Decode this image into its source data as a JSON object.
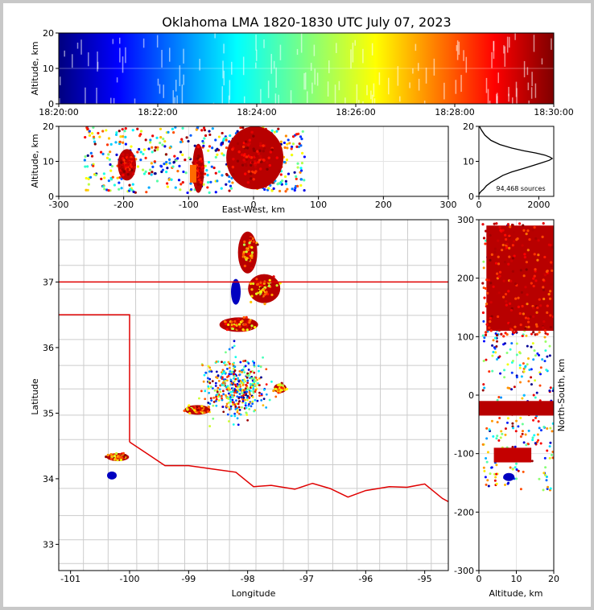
{
  "title": "Oklahoma LMA 1820-1830 UTC July 07, 2023",
  "colors": {
    "border": "#e00000",
    "county": "#c8c8c8",
    "hist": "#000000",
    "frame": "#c8c8c8"
  },
  "chart_data": [
    {
      "id": "time-altitude",
      "type": "scatter",
      "ylabel": "Altitude, km",
      "xlabel": "",
      "xlim": [
        "18:20:00",
        "18:30:00"
      ],
      "xticks": [
        "18:20:00",
        "18:22:00",
        "18:24:00",
        "18:26:00",
        "18:28:00",
        "18:30:00"
      ],
      "ylim": [
        0,
        20
      ],
      "yticks": [
        "0",
        "10",
        "20"
      ],
      "colormap": "jet (by time)"
    },
    {
      "id": "eastwest-altitude",
      "type": "scatter",
      "xlabel": "East-West, km",
      "ylabel": "Altitude, km",
      "xlim": [
        -300,
        300
      ],
      "xticks": [
        "-300",
        "-200",
        "-100",
        "0",
        "100",
        "200",
        "300"
      ],
      "ylim": [
        0,
        20
      ],
      "yticks": [
        "0",
        "10",
        "20"
      ],
      "grid": true
    },
    {
      "id": "altitude-histogram",
      "type": "line",
      "xlim": [
        0,
        2500
      ],
      "xticks": [
        "0",
        "2000"
      ],
      "ylim": [
        0,
        20
      ],
      "yticks": [
        "0",
        "10",
        "20"
      ],
      "annotation": "94,468 sources",
      "x": [
        0,
        30,
        80,
        150,
        250,
        400,
        600,
        800,
        1100,
        1500,
        1800,
        2100,
        2350,
        2450,
        2380,
        2200,
        1900,
        1500,
        1100,
        700,
        400,
        200,
        80,
        20
      ],
      "y": [
        0.5,
        1,
        1.5,
        2,
        3,
        4,
        5,
        6,
        7,
        8,
        8.8,
        9.6,
        10.3,
        10.8,
        11.2,
        11.8,
        12.4,
        13.0,
        13.8,
        14.8,
        16,
        17.5,
        19,
        20
      ]
    },
    {
      "id": "plan-view",
      "type": "scatter",
      "xlabel": "Longitude",
      "ylabel": "Latitude",
      "xlim": [
        -101.2,
        -94.6
      ],
      "xticks": [
        "-101",
        "-100",
        "-99",
        "-98",
        "-97",
        "-96",
        "-95"
      ],
      "ylim": [
        32.6,
        37.95
      ],
      "yticks": [
        "33",
        "34",
        "35",
        "36",
        "37"
      ],
      "storms": [
        {
          "lon": -97.98,
          "lat": 37.3,
          "kind": "north cell"
        },
        {
          "lon": -97.72,
          "lat": 36.85,
          "kind": "north cell"
        },
        {
          "lon": -98.15,
          "lat": 36.33,
          "kind": "line"
        },
        {
          "lon": -97.45,
          "lat": 35.38,
          "kind": "cell"
        },
        {
          "lon": -98.9,
          "lat": 35.05,
          "kind": "cell"
        },
        {
          "lon": -100.2,
          "lat": 34.33,
          "kind": "southwest cell"
        }
      ]
    },
    {
      "id": "altitude-northsouth",
      "type": "scatter",
      "xlabel": "Altitude, km",
      "ylabel": "North-South, km",
      "xlim": [
        0,
        20
      ],
      "xticks": [
        "0",
        "10",
        "20"
      ],
      "ylim": [
        -300,
        300
      ],
      "yticks": [
        "-300",
        "-200",
        "-100",
        "0",
        "100",
        "200",
        "300"
      ],
      "grid": true
    }
  ]
}
